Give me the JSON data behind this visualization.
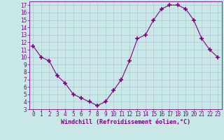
{
  "x": [
    0,
    1,
    2,
    3,
    4,
    5,
    6,
    7,
    8,
    9,
    10,
    11,
    12,
    13,
    14,
    15,
    16,
    17,
    18,
    19,
    20,
    21,
    22,
    23
  ],
  "y": [
    11.5,
    10.0,
    9.5,
    7.5,
    6.5,
    5.0,
    4.5,
    4.0,
    3.5,
    4.0,
    5.5,
    7.0,
    9.5,
    12.5,
    13.0,
    15.0,
    16.5,
    17.0,
    17.0,
    16.5,
    15.0,
    12.5,
    11.0,
    10.0
  ],
  "line_color": "#800080",
  "marker": "+",
  "marker_size": 4,
  "marker_lw": 1.2,
  "bg_color": "#c8e8e8",
  "grid_color": "#b0b8d0",
  "xlabel": "Windchill (Refroidissement éolien,°C)",
  "xlabel_color": "#800080",
  "tick_color": "#800080",
  "spine_color": "#800080",
  "ylim": [
    3,
    17.5
  ],
  "xlim": [
    -0.5,
    23.5
  ],
  "yticks": [
    3,
    4,
    5,
    6,
    7,
    8,
    9,
    10,
    11,
    12,
    13,
    14,
    15,
    16,
    17
  ],
  "xticks": [
    0,
    1,
    2,
    3,
    4,
    5,
    6,
    7,
    8,
    9,
    10,
    11,
    12,
    13,
    14,
    15,
    16,
    17,
    18,
    19,
    20,
    21,
    22,
    23
  ],
  "tick_fontsize": 5.5,
  "xlabel_fontsize": 6.0,
  "linewidth": 0.8
}
